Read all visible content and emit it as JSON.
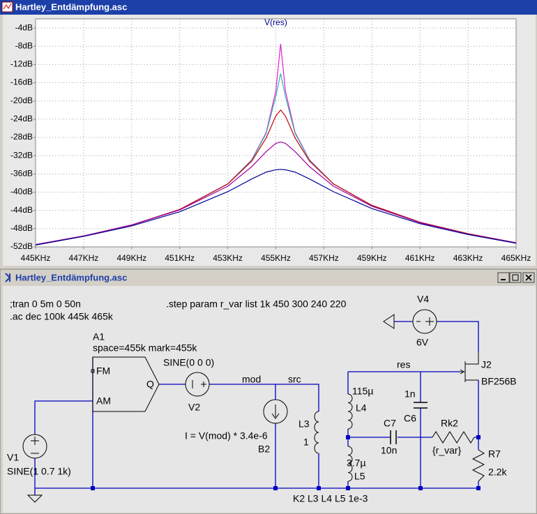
{
  "plot_window": {
    "title": "Hartley_Entdämpfung.asc"
  },
  "chart_data": {
    "type": "line",
    "title": "V(res)",
    "x": [
      445,
      447,
      449,
      451,
      453,
      454,
      454.6,
      455,
      455.2,
      455.4,
      455.8,
      456.4,
      457.4,
      459,
      461,
      463,
      465
    ],
    "series": [
      {
        "color": "#e020d0",
        "values": [
          -51.5,
          -49.6,
          -47.2,
          -43.8,
          -38.2,
          -32.9,
          -26.9,
          -17.8,
          -7.5,
          -17.8,
          -26.9,
          -32.9,
          -38.2,
          -42.9,
          -46.6,
          -49.1,
          -51.1
        ]
      },
      {
        "color": "#30b0b0",
        "values": [
          -51.5,
          -49.6,
          -47.2,
          -43.8,
          -38.2,
          -33.0,
          -27.1,
          -19.0,
          -14,
          -19.0,
          -27.1,
          -33.0,
          -38.2,
          -42.9,
          -46.6,
          -49.1,
          -51.1
        ]
      },
      {
        "color": "#c00000",
        "values": [
          -51.5,
          -49.6,
          -47.2,
          -43.8,
          -38.2,
          -33.2,
          -28.1,
          -23.3,
          -22,
          -23.3,
          -28.1,
          -33.2,
          -38.2,
          -42.9,
          -46.6,
          -49.1,
          -51.1
        ]
      },
      {
        "color": "#a000a0",
        "values": [
          -51.5,
          -49.6,
          -47.2,
          -43.9,
          -38.7,
          -34.4,
          -31.1,
          -29.3,
          -29,
          -29.3,
          -31.1,
          -34.4,
          -38.7,
          -43.1,
          -46.7,
          -49.2,
          -51.1
        ]
      },
      {
        "color": "#000090",
        "values": [
          -51.6,
          -49.7,
          -47.4,
          -44.3,
          -39.9,
          -37.1,
          -35.6,
          -35.1,
          -35,
          -35.1,
          -35.6,
          -37.1,
          -39.9,
          -43.6,
          -46.9,
          -49.3,
          -51.2
        ]
      }
    ],
    "xlim": [
      445,
      465
    ],
    "xticks": [
      {
        "value": 445,
        "label": "445KHz"
      },
      {
        "value": 447,
        "label": "447KHz"
      },
      {
        "value": 449,
        "label": "449KHz"
      },
      {
        "value": 451,
        "label": "451KHz"
      },
      {
        "value": 453,
        "label": "453KHz"
      },
      {
        "value": 455,
        "label": "455KHz"
      },
      {
        "value": 457,
        "label": "457KHz"
      },
      {
        "value": 459,
        "label": "459KHz"
      },
      {
        "value": 461,
        "label": "461KHz"
      },
      {
        "value": 463,
        "label": "463KHz"
      },
      {
        "value": 465,
        "label": "465KHz"
      }
    ],
    "ylim": [
      -52,
      -2
    ],
    "yticks": [
      {
        "value": -4,
        "label": "-4dB"
      },
      {
        "value": -8,
        "label": "-8dB"
      },
      {
        "value": -12,
        "label": "-12dB"
      },
      {
        "value": -16,
        "label": "-16dB"
      },
      {
        "value": -20,
        "label": "-20dB"
      },
      {
        "value": -24,
        "label": "-24dB"
      },
      {
        "value": -28,
        "label": "-28dB"
      },
      {
        "value": -32,
        "label": "-32dB"
      },
      {
        "value": -36,
        "label": "-36dB"
      },
      {
        "value": -40,
        "label": "-40dB"
      },
      {
        "value": -44,
        "label": "-44dB"
      },
      {
        "value": -48,
        "label": "-48dB"
      },
      {
        "value": -52,
        "label": "-52dB"
      }
    ],
    "grid": true
  },
  "schematic_window": {
    "title": "Hartley_Entdämpfung.asc",
    "directives": [
      ";tran 0 5m 0 50n",
      ".ac dec 100k 445k 465k",
      ".step param r_var list 1k 450 300 240 220",
      "K2 L3 L4 L5 1e-3"
    ],
    "v4": {
      "name": "V4",
      "value": "6V"
    },
    "a1": {
      "name": "A1",
      "params": "space=455k mark=455k",
      "pins": [
        "FM",
        "AM",
        "Q"
      ]
    },
    "v2": {
      "name": "V2",
      "value": "SINE(0 0 0)"
    },
    "v1": {
      "name": "V1",
      "value": "SINE(1 0.7 1k)"
    },
    "b2": {
      "name": "B2",
      "value": "I =  V(mod) * 3.4e-6"
    },
    "l3": {
      "name": "L3",
      "value": "1"
    },
    "l4": {
      "name": "L4",
      "value": "115µ"
    },
    "l5": {
      "name": "L5",
      "value": "3.7µ"
    },
    "c6": {
      "name": "C6",
      "value": "1n"
    },
    "c7": {
      "name": "C7",
      "value": "10n"
    },
    "rk2": {
      "name": "Rk2",
      "value": "{r_var}"
    },
    "r7": {
      "name": "R7",
      "value": "2.2k"
    },
    "j2": {
      "name": "J2",
      "value": "BF256B"
    },
    "nets": [
      "mod",
      "src",
      "res"
    ]
  }
}
